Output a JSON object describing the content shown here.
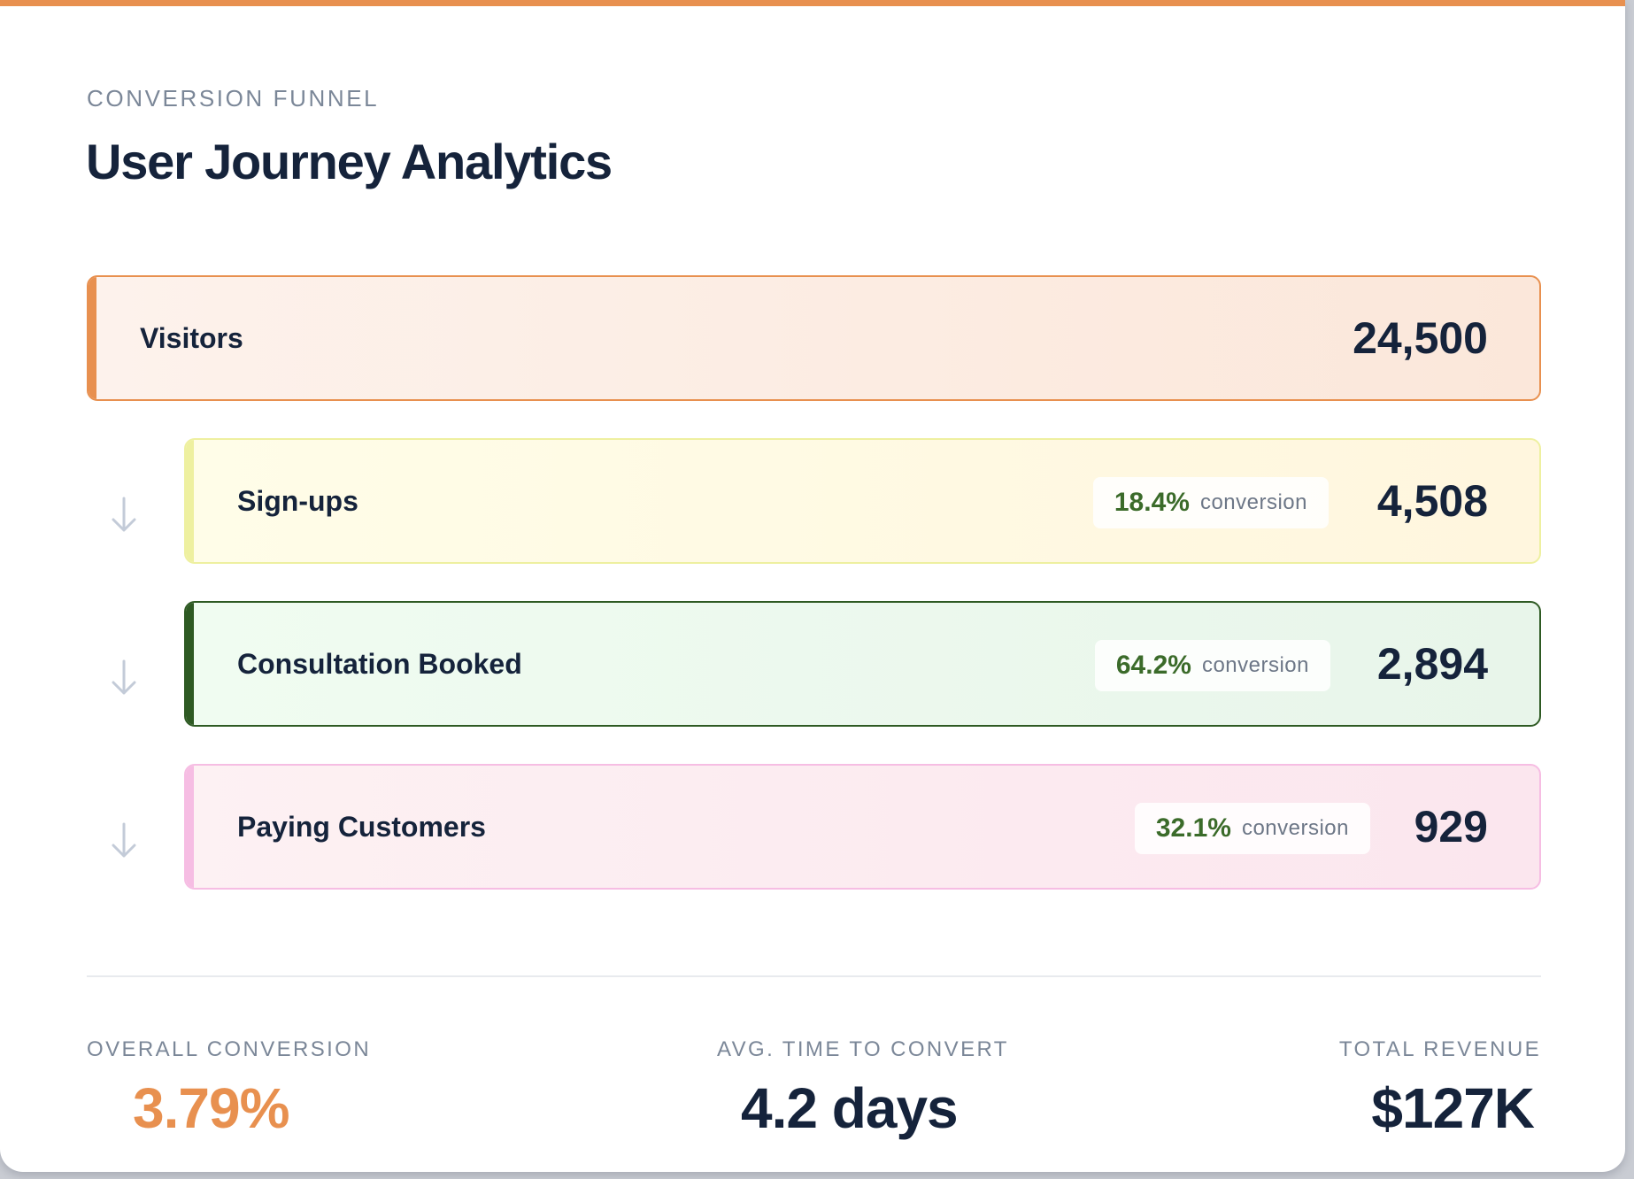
{
  "header": {
    "eyebrow": "CONVERSION FUNNEL",
    "title": "User Journey Analytics"
  },
  "accent_color": "#e8904f",
  "funnel": [
    {
      "name": "Visitors",
      "count": "24,500",
      "color": "#e8904f"
    },
    {
      "name": "Sign-ups",
      "count": "4,508",
      "conversion_pct": "18.4%",
      "conversion_label": "conversion",
      "color": "#eef0a0"
    },
    {
      "name": "Consultation Booked",
      "count": "2,894",
      "conversion_pct": "64.2%",
      "conversion_label": "conversion",
      "color": "#2e5a23"
    },
    {
      "name": "Paying Customers",
      "count": "929",
      "conversion_pct": "32.1%",
      "conversion_label": "conversion",
      "color": "#f6bde3"
    }
  ],
  "stats": {
    "overall_conversion": {
      "label": "OVERALL CONVERSION",
      "value": "3.79%",
      "color": "#e8904f"
    },
    "avg_time": {
      "label": "AVG. TIME TO CONVERT",
      "value": "4.2 days"
    },
    "total_revenue": {
      "label": "TOTAL REVENUE",
      "value": "$127K"
    }
  }
}
